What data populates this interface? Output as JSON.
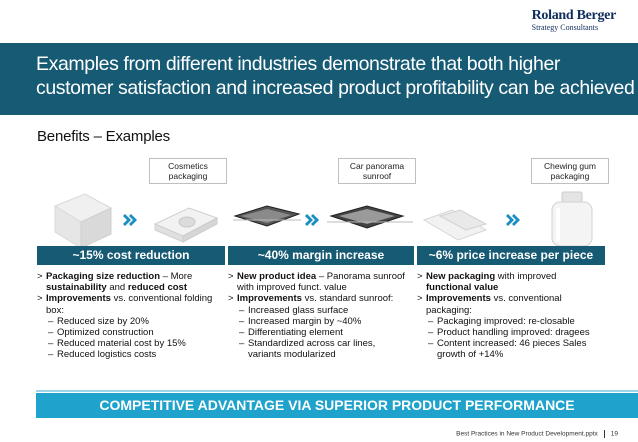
{
  "logo": {
    "brand": "Roland Berger",
    "sub": "Strategy Consultants"
  },
  "title": "Examples from different industries demonstrate that both higher customer satisfaction and increased product profitability can be achieved",
  "subtitle": "Benefits – Examples",
  "columns": [
    {
      "tag": [
        "Cosmetics",
        "packaging"
      ],
      "headline": "~15% cost reduction",
      "bullets": [
        {
          "level": 1,
          "parts": [
            {
              "b": true,
              "t": "Packaging size reduction"
            },
            {
              "b": false,
              "t": " – More "
            },
            {
              "b": true,
              "t": "sustainability"
            },
            {
              "b": false,
              "t": " and "
            },
            {
              "b": true,
              "t": "reduced cost"
            }
          ]
        },
        {
          "level": 1,
          "parts": [
            {
              "b": true,
              "t": "Improvements"
            },
            {
              "b": false,
              "t": " vs. conventional folding box:"
            }
          ]
        },
        {
          "level": 2,
          "parts": [
            {
              "b": false,
              "t": "Reduced size by 20%"
            }
          ]
        },
        {
          "level": 2,
          "parts": [
            {
              "b": false,
              "t": "Optimized construction"
            }
          ]
        },
        {
          "level": 2,
          "parts": [
            {
              "b": false,
              "t": "Reduced material cost by 15%"
            }
          ]
        },
        {
          "level": 2,
          "parts": [
            {
              "b": false,
              "t": "Reduced logistics costs"
            }
          ]
        }
      ]
    },
    {
      "tag": [
        "Car panorama",
        "sunroof"
      ],
      "headline": "~40% margin increase",
      "bullets": [
        {
          "level": 1,
          "parts": [
            {
              "b": true,
              "t": "New product idea"
            },
            {
              "b": false,
              "t": " – Panorama sunroof with improved funct. value"
            }
          ]
        },
        {
          "level": 1,
          "parts": [
            {
              "b": true,
              "t": "Improvements"
            },
            {
              "b": false,
              "t": " vs. standard sunroof:"
            }
          ]
        },
        {
          "level": 2,
          "parts": [
            {
              "b": false,
              "t": "Increased glass surface"
            }
          ]
        },
        {
          "level": 2,
          "parts": [
            {
              "b": false,
              "t": "Increased margin by ~40%"
            }
          ]
        },
        {
          "level": 2,
          "parts": [
            {
              "b": false,
              "t": "Differentiating element"
            }
          ]
        },
        {
          "level": 2,
          "parts": [
            {
              "b": false,
              "t": "Standardized across car lines, variants modularized"
            }
          ]
        }
      ]
    },
    {
      "tag": [
        "Chewing gum",
        "packaging"
      ],
      "headline": "~6% price increase per piece",
      "bullets": [
        {
          "level": 1,
          "parts": [
            {
              "b": true,
              "t": "New packaging"
            },
            {
              "b": false,
              "t": " with improved "
            },
            {
              "b": true,
              "t": "functional value"
            }
          ]
        },
        {
          "level": 1,
          "parts": [
            {
              "b": true,
              "t": "Improvements"
            },
            {
              "b": false,
              "t": " vs. conventional packaging:"
            }
          ]
        },
        {
          "level": 2,
          "parts": [
            {
              "b": false,
              "t": "Packaging improved: re-closable"
            }
          ]
        },
        {
          "level": 2,
          "parts": [
            {
              "b": false,
              "t": "Product handling improved: dragees"
            }
          ]
        },
        {
          "level": 2,
          "parts": [
            {
              "b": false,
              "t": "Content increased: 46 pieces Sales growth of +14%"
            }
          ]
        }
      ]
    }
  ],
  "advantage": "COMPETITIVE ADVANTAGE VIA SUPERIOR PRODUCT PERFORMANCE",
  "footer": {
    "doc": "Best Practices in New Product Development.pptx",
    "page": "19"
  },
  "colors": {
    "title_bar": "#165a74",
    "band": "#165a74",
    "advantage": "#1fa2cc",
    "arrow": "#1b8fc2"
  }
}
